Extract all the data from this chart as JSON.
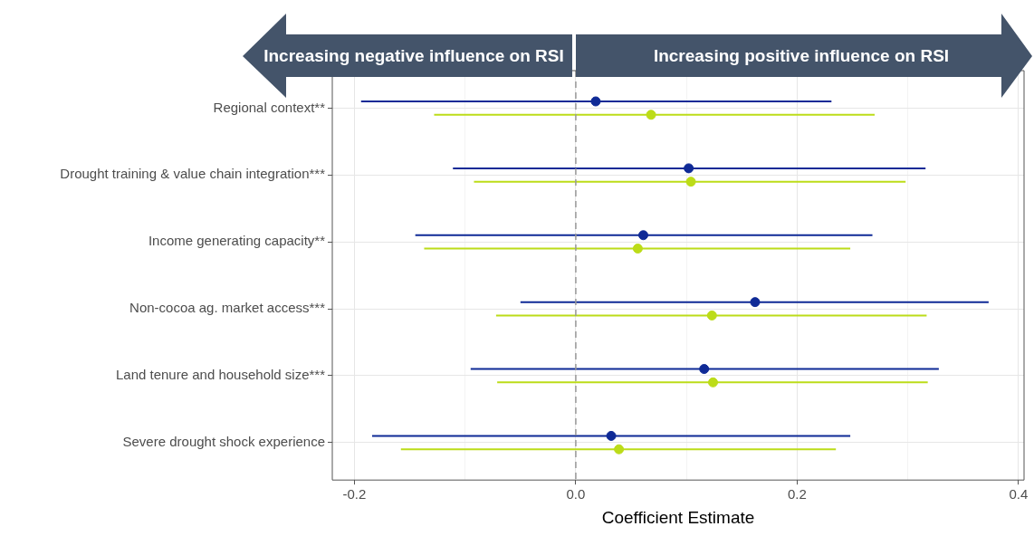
{
  "chart_data": {
    "type": "scatter",
    "orientation": "horizontal",
    "xlabel": "Coefficient Estimate",
    "categories": [
      "Regional context**",
      "Drought training & value chain integration***",
      "Income generating capacity**",
      "Non-cocoa ag. market access***",
      "Land tenure and household size***",
      "Severe drought shock experience"
    ],
    "series": [
      {
        "color": "#0f2a96",
        "values": [
          0.018,
          0.102,
          0.061,
          0.162,
          0.116,
          0.032
        ],
        "errors": [
          [
            -0.194,
            0.231
          ],
          [
            -0.111,
            0.316
          ],
          [
            -0.145,
            0.268
          ],
          [
            -0.05,
            0.373
          ],
          [
            -0.095,
            0.328
          ],
          [
            -0.184,
            0.248
          ]
        ]
      },
      {
        "color": "#bcdc18",
        "values": [
          0.068,
          0.104,
          0.056,
          0.123,
          0.124,
          0.039
        ],
        "errors": [
          [
            -0.128,
            0.27
          ],
          [
            -0.092,
            0.298
          ],
          [
            -0.137,
            0.248
          ],
          [
            -0.072,
            0.317
          ],
          [
            -0.071,
            0.318
          ],
          [
            -0.158,
            0.235
          ]
        ]
      }
    ],
    "xlim": [
      -0.22,
      0.405
    ],
    "xticks": [
      {
        "value": -0.2,
        "label": "-0.2"
      },
      {
        "value": -0.1,
        "label": null
      },
      {
        "value": 0,
        "label": "0.0"
      },
      {
        "value": 0.1,
        "label": null
      },
      {
        "value": 0.2,
        "label": "0.2"
      },
      {
        "value": 0.3,
        "label": null
      },
      {
        "value": 0.4,
        "label": "0.4"
      }
    ],
    "ref_lines": [
      {
        "axis": "x",
        "value": 0,
        "color": "#999999",
        "line_style": "dashed"
      }
    ],
    "annotations": [
      "Increasing negative influence on RSI",
      "Increasing positive influence on RSI"
    ],
    "grid": true,
    "legend": false,
    "marker": "circle"
  }
}
